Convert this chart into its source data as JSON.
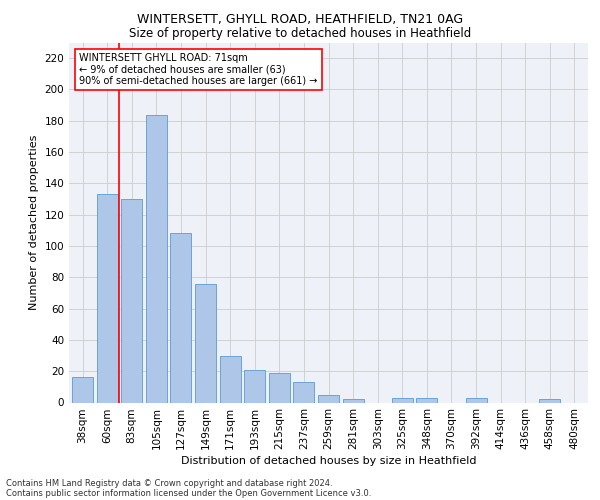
{
  "title1": "WINTERSETT, GHYLL ROAD, HEATHFIELD, TN21 0AG",
  "title2": "Size of property relative to detached houses in Heathfield",
  "xlabel": "Distribution of detached houses by size in Heathfield",
  "ylabel": "Number of detached properties",
  "categories": [
    "38sqm",
    "60sqm",
    "83sqm",
    "105sqm",
    "127sqm",
    "149sqm",
    "171sqm",
    "193sqm",
    "215sqm",
    "237sqm",
    "259sqm",
    "281sqm",
    "303sqm",
    "325sqm",
    "348sqm",
    "370sqm",
    "392sqm",
    "414sqm",
    "436sqm",
    "458sqm",
    "480sqm"
  ],
  "values": [
    16,
    133,
    130,
    184,
    108,
    76,
    30,
    21,
    19,
    13,
    5,
    2,
    0,
    3,
    3,
    0,
    3,
    0,
    0,
    2,
    0
  ],
  "bar_color": "#aec6e8",
  "bar_edge_color": "#5b9bd5",
  "vline_x": 1.5,
  "vline_color": "red",
  "annotation_title": "WINTERSETT GHYLL ROAD: 71sqm",
  "annotation_line2": "← 9% of detached houses are smaller (63)",
  "annotation_line3": "90% of semi-detached houses are larger (661) →",
  "annotation_box_color": "white",
  "annotation_box_edge": "red",
  "ylim": [
    0,
    230
  ],
  "yticks": [
    0,
    20,
    40,
    60,
    80,
    100,
    120,
    140,
    160,
    180,
    200,
    220
  ],
  "footer1": "Contains HM Land Registry data © Crown copyright and database right 2024.",
  "footer2": "Contains public sector information licensed under the Open Government Licence v3.0.",
  "bg_color": "#eef2f8",
  "grid_color": "#cccccc",
  "title1_fontsize": 9,
  "title2_fontsize": 8.5,
  "xlabel_fontsize": 8,
  "ylabel_fontsize": 8,
  "tick_fontsize": 7.5,
  "ann_fontsize": 7,
  "footer_fontsize": 6
}
